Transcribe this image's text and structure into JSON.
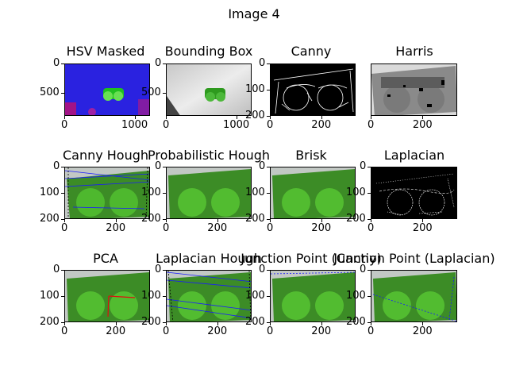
{
  "figure": {
    "title": "Image 4"
  },
  "panels": [
    {
      "title": "HSV Masked",
      "xticks": [
        "0",
        "1000"
      ],
      "yticks": [
        "0",
        "500"
      ]
    },
    {
      "title": "Bounding Box",
      "xticks": [
        "0",
        "1000"
      ],
      "yticks": [
        "0",
        "500"
      ]
    },
    {
      "title": "Canny",
      "xticks": [
        "0",
        "200"
      ],
      "yticks": [
        "0",
        "100",
        "200"
      ]
    },
    {
      "title": "Harris",
      "xticks": [
        "0",
        "200"
      ],
      "yticks": []
    },
    {
      "title": "Canny Hough",
      "xticks": [
        "0",
        "200"
      ],
      "yticks": [
        "0",
        "100",
        "200"
      ]
    },
    {
      "title": "Probabilistic Hough",
      "xticks": [
        "0",
        "200"
      ],
      "yticks": [
        "0",
        "100",
        "200"
      ]
    },
    {
      "title": "Brisk",
      "xticks": [
        "0",
        "200"
      ],
      "yticks": [
        "0",
        "100",
        "200"
      ]
    },
    {
      "title": "Laplacian",
      "xticks": [
        "0",
        "200"
      ],
      "yticks": [
        "0",
        "100",
        "200"
      ]
    },
    {
      "title": "PCA",
      "xticks": [
        "0",
        "200"
      ],
      "yticks": [
        "0",
        "100",
        "200"
      ]
    },
    {
      "title": "Laplacian Hough",
      "xticks": [
        "0",
        "200"
      ],
      "yticks": [
        "0",
        "100",
        "200"
      ]
    },
    {
      "title": "Junction Point (Canny)",
      "xticks": [
        "0",
        "200"
      ],
      "yticks": [
        "0",
        "100",
        "200"
      ]
    },
    {
      "title": "Junction Point (Laplacian)",
      "xticks": [
        "0",
        "200"
      ],
      "yticks": [
        "0",
        "100",
        "200"
      ]
    }
  ]
}
